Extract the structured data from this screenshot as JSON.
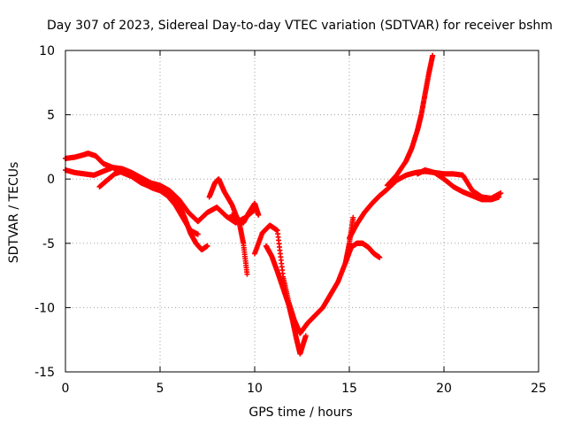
{
  "chart_data": {
    "type": "scatter",
    "title": "Day 307 of 2023, Sidereal Day-to-day VTEC variation (SDTVAR) for receiver bshm",
    "xlabel": "GPS time / hours",
    "ylabel": "SDTVAR / TECUs",
    "xlim": [
      0,
      25
    ],
    "ylim": [
      -15,
      10
    ],
    "xticks": [
      0,
      5,
      10,
      15,
      20,
      25
    ],
    "xtick_labels": [
      "0",
      "5",
      "10",
      "15",
      "20",
      "25"
    ],
    "yticks": [
      -15,
      -10,
      -5,
      0,
      5,
      10
    ],
    "ytick_labels": [
      "-15",
      "-10",
      "-5",
      "0",
      "5",
      "10"
    ],
    "grid": true,
    "marker": "+",
    "series_color": "#ff0000",
    "series": [
      {
        "name": "trace-1",
        "x": [
          0,
          0.5,
          1.0,
          1.2,
          1.6,
          2.0,
          2.5,
          3.0,
          3.5,
          4.0,
          4.5,
          5.0,
          5.5,
          6.0,
          6.3,
          6.6,
          6.9,
          7.2,
          7.5
        ],
        "y": [
          1.6,
          1.7,
          1.9,
          2.0,
          1.8,
          1.2,
          0.9,
          0.5,
          0.2,
          -0.3,
          -0.6,
          -0.8,
          -1.2,
          -2.0,
          -3.0,
          -4.2,
          -5.0,
          -5.5,
          -5.2
        ]
      },
      {
        "name": "trace-2",
        "x": [
          0,
          0.5,
          1.0,
          1.5,
          2.0,
          2.5,
          3.0,
          3.5,
          4.0,
          4.5,
          5.0,
          5.5,
          6.0,
          6.5,
          7.0,
          7.5,
          8.0,
          8.5,
          9.0,
          9.5,
          10.0
        ],
        "y": [
          0.7,
          0.5,
          0.4,
          0.3,
          0.6,
          0.9,
          0.8,
          0.5,
          0.1,
          -0.3,
          -0.5,
          -0.9,
          -1.6,
          -2.6,
          -3.3,
          -2.6,
          -2.2,
          -2.9,
          -3.4,
          -3.0,
          -2.4
        ]
      },
      {
        "name": "trace-3",
        "x": [
          1.8,
          2.2,
          2.6,
          3.0,
          3.4,
          3.8,
          4.2,
          4.6,
          5.0,
          5.4,
          5.8,
          6.2,
          6.6,
          7.0
        ],
        "y": [
          -0.6,
          -0.1,
          0.4,
          0.6,
          0.4,
          0.0,
          -0.4,
          -0.7,
          -0.9,
          -1.3,
          -2.0,
          -3.0,
          -4.0,
          -4.3
        ]
      },
      {
        "name": "trace-4",
        "x": [
          7.6,
          7.9,
          8.1,
          8.4,
          8.8,
          9.2,
          9.4,
          9.6
        ],
        "y": [
          -1.4,
          -0.3,
          0.0,
          -1.0,
          -2.0,
          -3.5,
          -5.0,
          -7.4
        ]
      },
      {
        "name": "trace-5",
        "x": [
          8.8,
          9.1,
          9.4,
          9.7,
          10.0,
          10.2
        ],
        "y": [
          -2.8,
          -3.1,
          -3.4,
          -2.6,
          -1.9,
          -2.8
        ]
      },
      {
        "name": "trace-6",
        "x": [
          10.0,
          10.4,
          10.8,
          11.2,
          11.5,
          11.8,
          12.1,
          12.4,
          12.8,
          13.2,
          13.6,
          14.0,
          14.4,
          14.8,
          15.0,
          15.2
        ],
        "y": [
          -5.8,
          -4.2,
          -3.6,
          -4.0,
          -7.6,
          -9.6,
          -11.0,
          -12.0,
          -11.2,
          -10.6,
          -10.0,
          -9.0,
          -8.0,
          -6.5,
          -5.0,
          -3.0
        ]
      },
      {
        "name": "trace-7",
        "x": [
          10.6,
          10.9,
          11.2,
          11.5,
          11.8,
          12.0,
          12.2,
          12.4,
          12.7
        ],
        "y": [
          -5.2,
          -6.0,
          -7.2,
          -8.5,
          -9.8,
          -11.0,
          -12.4,
          -13.6,
          -12.2
        ]
      },
      {
        "name": "trace-8",
        "x": [
          14.8,
          15.1,
          15.4,
          15.7,
          16.0,
          16.3,
          16.6
        ],
        "y": [
          -6.5,
          -5.3,
          -5.0,
          -5.0,
          -5.3,
          -5.8,
          -6.1
        ]
      },
      {
        "name": "trace-9",
        "x": [
          15.0,
          15.4,
          15.8,
          16.2,
          16.6,
          17.0,
          17.5,
          18.0,
          18.5,
          19.0,
          19.5,
          20.0,
          20.5,
          21.0,
          21.5,
          22.0,
          22.5,
          23.0
        ],
        "y": [
          -4.6,
          -3.5,
          -2.6,
          -1.9,
          -1.3,
          -0.8,
          -0.1,
          0.3,
          0.5,
          0.6,
          0.5,
          0.4,
          0.4,
          0.3,
          -0.9,
          -1.4,
          -1.5,
          -1.1
        ]
      },
      {
        "name": "trace-10",
        "x": [
          17.0,
          17.5,
          18.0,
          18.3,
          18.6,
          18.8,
          19.0,
          19.2,
          19.4
        ],
        "y": [
          -0.5,
          0.3,
          1.4,
          2.4,
          3.8,
          5.0,
          6.6,
          8.2,
          9.6
        ]
      },
      {
        "name": "trace-11",
        "x": [
          18.6,
          19.0,
          19.5,
          20.0,
          20.5,
          21.0,
          21.5,
          22.0,
          22.5,
          22.9
        ],
        "y": [
          0.4,
          0.7,
          0.5,
          0.0,
          -0.6,
          -1.0,
          -1.3,
          -1.6,
          -1.6,
          -1.4
        ]
      }
    ]
  }
}
